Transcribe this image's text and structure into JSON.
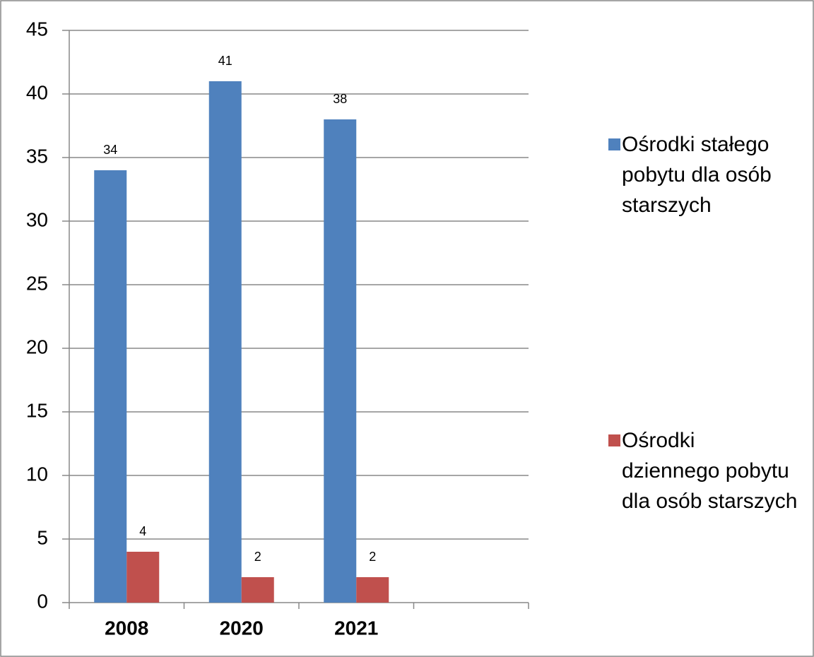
{
  "chart_data": {
    "type": "bar",
    "categories": [
      "2008",
      "2020",
      "2021",
      null
    ],
    "series": [
      {
        "name": "Ośrodki stałego pobytu dla osób starszych",
        "color": "#4f81bd",
        "values": [
          34,
          41,
          38,
          null
        ]
      },
      {
        "name": "Ośrodki dziennego pobytu dla osób starszych",
        "color": "#c0504d",
        "values": [
          4,
          2,
          2,
          null
        ]
      }
    ],
    "ylim": [
      0,
      45
    ],
    "yticks": [
      0,
      5,
      10,
      15,
      20,
      25,
      30,
      35,
      40,
      45
    ],
    "grid": true,
    "legend": "right"
  }
}
